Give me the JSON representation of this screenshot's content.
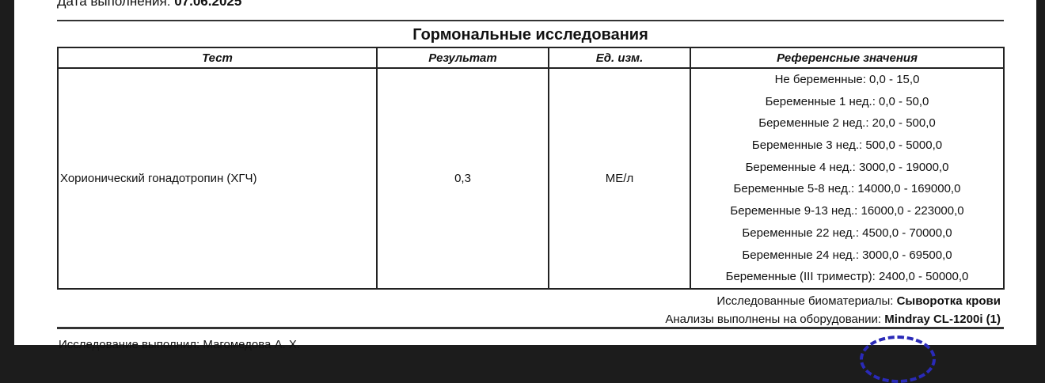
{
  "header": {
    "date_label": "Дата выполнения:",
    "date_value": "07.06.2025"
  },
  "section_title": "Гормональные исследования",
  "table": {
    "columns": [
      "Тест",
      "Результат",
      "Ед. изм.",
      "Референсные значения"
    ],
    "rows": [
      {
        "test": "Хорионический гонадотропин (ХГЧ)",
        "result": "0,3",
        "unit": "МЕ/л",
        "reference": [
          "Не беременные: 0,0 - 15,0",
          "Беременные 1 нед.: 0,0 - 50,0",
          "Беременные 2 нед.: 20,0 - 500,0",
          "Беременные 3 нед.: 500,0 - 5000,0",
          "Беременные 4 нед.: 3000,0 - 19000,0",
          "Беременные 5-8 нед.: 14000,0 - 169000,0",
          "Беременные 9-13 нед.: 16000,0 - 223000,0",
          "Беременные 22 нед.: 4500,0 - 70000,0",
          "Беременные 24 нед.: 3000,0 - 69500,0",
          "Беременные (III триместр): 2400,0 - 50000,0"
        ]
      }
    ]
  },
  "footer": {
    "biomaterial_label": "Исследованные биоматериалы:",
    "biomaterial_value": "Сыворотка крови",
    "equipment_label": "Анализы выполнены на оборудовании:",
    "equipment_value": "Mindray CL-1200i (1)",
    "signer": "Исследование выполнил: Магомедова А. Х."
  },
  "colors": {
    "stamp": "#2a2ab8"
  }
}
